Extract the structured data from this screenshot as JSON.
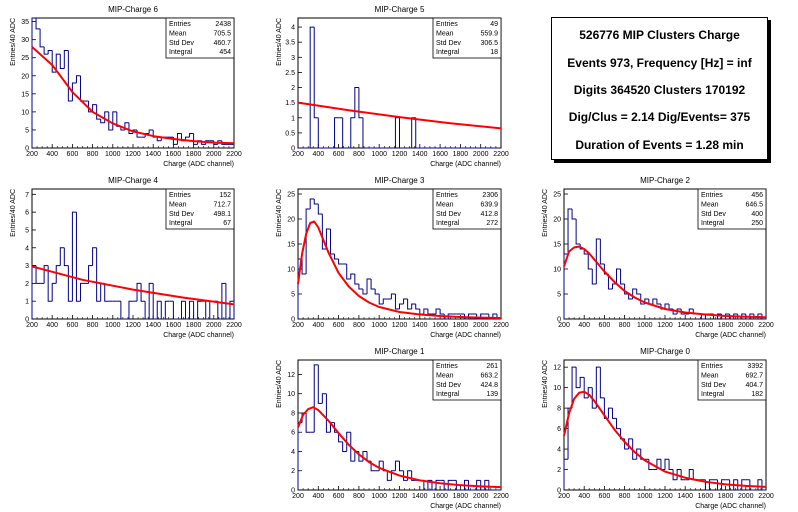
{
  "chart_data": [
    {
      "type": "histogram",
      "title": "MIP-Charge 6",
      "xlabel": "Charge (ADC channel)",
      "ylabel": "Entries/40 ADC",
      "xlim": [
        200,
        2200
      ],
      "ylim": [
        0,
        36
      ],
      "yticks": [
        0,
        5,
        10,
        15,
        20,
        25,
        30,
        35
      ],
      "bin_width": 40,
      "values": [
        36,
        33,
        28,
        26,
        27,
        21,
        26,
        22,
        27,
        13,
        18,
        20,
        13,
        13,
        10,
        12,
        8,
        7,
        10,
        5,
        10,
        6,
        5,
        7,
        4,
        5,
        3,
        3,
        4,
        5,
        3,
        2,
        3,
        3,
        3,
        1,
        4,
        2,
        3,
        4,
        1,
        2,
        1,
        2,
        2,
        1,
        2,
        1,
        1,
        1
      ],
      "fit": {
        "type": "exponential",
        "name": "expo",
        "points": [
          [
            200,
            28
          ],
          [
            400,
            23
          ],
          [
            600,
            15.5
          ],
          [
            800,
            10
          ],
          [
            1000,
            6.8
          ],
          [
            1200,
            4.6
          ],
          [
            1400,
            3.3
          ],
          [
            1600,
            2.5
          ],
          [
            1800,
            1.9
          ],
          [
            2000,
            1.5
          ],
          [
            2200,
            1.3
          ]
        ]
      },
      "stats": [
        [
          "Entries",
          "2438"
        ],
        [
          "Mean",
          "705.5"
        ],
        [
          "Std Dev",
          "460.7"
        ],
        [
          "Integral",
          "454"
        ]
      ]
    },
    {
      "type": "histogram",
      "title": "MIP-Charge 5",
      "xlabel": "Charge (ADC channel)",
      "ylabel": "Entries/40 ADC",
      "xlim": [
        200,
        2200
      ],
      "ylim": [
        0,
        4.3
      ],
      "yticks": [
        0,
        0.5,
        1,
        1.5,
        2,
        2.5,
        3,
        3.5,
        4
      ],
      "bin_width": 40,
      "values": [
        0,
        0,
        0,
        4,
        1,
        0,
        0,
        0,
        0,
        1,
        1,
        0,
        0,
        1,
        2,
        1,
        0,
        0,
        0,
        0,
        0,
        0,
        0,
        0,
        1,
        0,
        0,
        0,
        1,
        0,
        0,
        0,
        0,
        0,
        0,
        0,
        0,
        0,
        0,
        0,
        0,
        0,
        0,
        0,
        0,
        0,
        0,
        0,
        0,
        0
      ],
      "fit": {
        "type": "exponential",
        "name": "expo",
        "points": [
          [
            200,
            1.5
          ],
          [
            700,
            1.25
          ],
          [
            1200,
            1.02
          ],
          [
            1700,
            0.82
          ],
          [
            2200,
            0.65
          ]
        ]
      },
      "stats": [
        [
          "Entries",
          "49"
        ],
        [
          "Mean",
          "559.9"
        ],
        [
          "Std Dev",
          "306.5"
        ],
        [
          "Integral",
          "18"
        ]
      ]
    },
    {
      "type": "histogram",
      "title": "MIP-Charge 4",
      "xlabel": "Charge (ADC channel)",
      "ylabel": "Entries/40 ADC",
      "xlim": [
        200,
        2200
      ],
      "ylim": [
        0,
        7.3
      ],
      "yticks": [
        0,
        1,
        2,
        3,
        4,
        5,
        6,
        7
      ],
      "bin_width": 40,
      "values": [
        3,
        2,
        2,
        3,
        1,
        2,
        3,
        4,
        3,
        1,
        6,
        1,
        2,
        2,
        3,
        4,
        1,
        2,
        1,
        1,
        1,
        1,
        0,
        0,
        1,
        1,
        2,
        1,
        0,
        2,
        0,
        1,
        0,
        1,
        1,
        0,
        0,
        1,
        0,
        1,
        0,
        1,
        1,
        0,
        1,
        1,
        0,
        2,
        0,
        1
      ],
      "fit": {
        "type": "exponential",
        "name": "expo",
        "points": [
          [
            200,
            2.95
          ],
          [
            700,
            2.2
          ],
          [
            1200,
            1.65
          ],
          [
            1700,
            1.2
          ],
          [
            2200,
            0.82
          ]
        ]
      },
      "stats": [
        [
          "Entries",
          "152"
        ],
        [
          "Mean",
          "712.7"
        ],
        [
          "Std Dev",
          "498.1"
        ],
        [
          "Integral",
          "67"
        ]
      ]
    },
    {
      "type": "histogram",
      "title": "MIP-Charge 3",
      "xlabel": "Charge (ADC channel)",
      "ylabel": "Entries/40 ADC",
      "xlim": [
        200,
        2200
      ],
      "ylim": [
        0,
        26
      ],
      "yticks": [
        0,
        5,
        10,
        15,
        20,
        25
      ],
      "bin_width": 40,
      "values": [
        12,
        9,
        22,
        24,
        23,
        21,
        14,
        18,
        13,
        12,
        11,
        11,
        8,
        9,
        7,
        6,
        5,
        8,
        6,
        5,
        3,
        4,
        4,
        5,
        2,
        3,
        4,
        2,
        3,
        2,
        1,
        2,
        1,
        1,
        2,
        1,
        0,
        1,
        1,
        1,
        1,
        0,
        1,
        1,
        0,
        1,
        1,
        0,
        1,
        0
      ],
      "fit": {
        "type": "landau",
        "name": "landau",
        "points": [
          [
            200,
            7
          ],
          [
            240,
            13
          ],
          [
            280,
            17
          ],
          [
            320,
            19.2
          ],
          [
            360,
            19.5
          ],
          [
            400,
            18.3
          ],
          [
            450,
            15.8
          ],
          [
            500,
            13.3
          ],
          [
            600,
            9.2
          ],
          [
            700,
            6.5
          ],
          [
            800,
            4.6
          ],
          [
            900,
            3.3
          ],
          [
            1000,
            2.4
          ],
          [
            1200,
            1.4
          ],
          [
            1400,
            0.9
          ],
          [
            1600,
            0.6
          ],
          [
            1800,
            0.4
          ],
          [
            2000,
            0.28
          ],
          [
            2200,
            0.2
          ]
        ]
      },
      "stats": [
        [
          "Entries",
          "2306"
        ],
        [
          "Mean",
          "639.9"
        ],
        [
          "Std Dev",
          "412.8"
        ],
        [
          "Integral",
          "272"
        ]
      ]
    },
    {
      "type": "histogram",
      "title": "MIP-Charge 2",
      "xlabel": "Charge (ADC channel)",
      "ylabel": "Entries/40 ADC",
      "xlim": [
        200,
        2200
      ],
      "ylim": [
        0,
        26
      ],
      "yticks": [
        0,
        5,
        10,
        15,
        20,
        25
      ],
      "bin_width": 40,
      "values": [
        13,
        22,
        20,
        15,
        14,
        13,
        10,
        7,
        16,
        11,
        9,
        6,
        7,
        10,
        7,
        5,
        4,
        6,
        5,
        3,
        4,
        3,
        4,
        3,
        2,
        3,
        2,
        1,
        2,
        1,
        1,
        2,
        1,
        1,
        0,
        1,
        1,
        0,
        1,
        0,
        1,
        0,
        1,
        0,
        1,
        0,
        1,
        0,
        1,
        0
      ],
      "fit": {
        "type": "landau",
        "name": "landau",
        "points": [
          [
            200,
            10.5
          ],
          [
            250,
            13.5
          ],
          [
            300,
            14.3
          ],
          [
            350,
            14.5
          ],
          [
            400,
            14
          ],
          [
            450,
            13.1
          ],
          [
            500,
            11.9
          ],
          [
            600,
            9.5
          ],
          [
            700,
            7.4
          ],
          [
            800,
            5.6
          ],
          [
            900,
            4.3
          ],
          [
            1000,
            3.3
          ],
          [
            1200,
            2
          ],
          [
            1400,
            1.3
          ],
          [
            1600,
            0.9
          ],
          [
            1800,
            0.6
          ],
          [
            2000,
            0.45
          ],
          [
            2200,
            0.35
          ]
        ]
      },
      "stats": [
        [
          "Entries",
          "456"
        ],
        [
          "Mean",
          "646.5"
        ],
        [
          "Std Dev",
          "400"
        ],
        [
          "Integral",
          "250"
        ]
      ]
    },
    {
      "type": "histogram",
      "title": "MIP-Charge 1",
      "xlabel": "Charge (ADC channel)",
      "ylabel": "Entries/40 ADC",
      "xlim": [
        200,
        2200
      ],
      "ylim": [
        0,
        13.5
      ],
      "yticks": [
        0,
        2,
        4,
        6,
        8,
        10,
        12
      ],
      "bin_width": 40,
      "values": [
        7,
        8,
        6,
        6,
        13,
        9,
        10,
        6,
        7,
        6,
        5,
        4,
        6,
        3,
        4,
        3,
        4,
        3,
        2,
        2,
        3,
        2,
        1,
        2,
        3,
        2,
        1,
        2,
        1,
        1,
        1,
        0,
        1,
        0,
        1,
        1,
        0,
        1,
        1,
        0,
        0,
        1,
        0,
        0,
        1,
        0,
        1,
        0,
        0,
        0
      ],
      "fit": {
        "type": "landau",
        "name": "landau",
        "points": [
          [
            200,
            6.5
          ],
          [
            250,
            7.8
          ],
          [
            300,
            8.4
          ],
          [
            350,
            8.6
          ],
          [
            400,
            8.3
          ],
          [
            500,
            7.2
          ],
          [
            600,
            5.9
          ],
          [
            700,
            4.7
          ],
          [
            800,
            3.7
          ],
          [
            900,
            2.9
          ],
          [
            1000,
            2.3
          ],
          [
            1200,
            1.5
          ],
          [
            1400,
            1
          ],
          [
            1600,
            0.7
          ],
          [
            1800,
            0.5
          ],
          [
            2000,
            0.38
          ],
          [
            2200,
            0.3
          ]
        ]
      },
      "stats": [
        [
          "Entries",
          "261"
        ],
        [
          "Mean",
          "663.2"
        ],
        [
          "Std Dev",
          "424.8"
        ],
        [
          "Integral",
          "139"
        ]
      ]
    },
    {
      "type": "histogram",
      "title": "MIP-Charge 0",
      "xlabel": "Charge (ADC channel)",
      "ylabel": "Entries/40 ADC",
      "xlim": [
        200,
        2200
      ],
      "ylim": [
        0,
        12.7
      ],
      "yticks": [
        0,
        2,
        4,
        6,
        8,
        10,
        12
      ],
      "bin_width": 40,
      "values": [
        3,
        8,
        12,
        10,
        11,
        9,
        10,
        8,
        12,
        9,
        7,
        8,
        7,
        6,
        5,
        4,
        5,
        3,
        4,
        3,
        3,
        2,
        2,
        3,
        2,
        3,
        2,
        1,
        2,
        1,
        1,
        2,
        1,
        1,
        1,
        0,
        1,
        1,
        0,
        1,
        1,
        0,
        1,
        0,
        1,
        1,
        0,
        0,
        1,
        0
      ],
      "fit": {
        "type": "landau",
        "name": "landau",
        "points": [
          [
            200,
            5.3
          ],
          [
            250,
            7.5
          ],
          [
            300,
            8.9
          ],
          [
            350,
            9.5
          ],
          [
            400,
            9.6
          ],
          [
            450,
            9.3
          ],
          [
            500,
            8.7
          ],
          [
            600,
            7.3
          ],
          [
            700,
            5.9
          ],
          [
            800,
            4.7
          ],
          [
            900,
            3.7
          ],
          [
            1000,
            2.9
          ],
          [
            1200,
            1.8
          ],
          [
            1400,
            1.2
          ],
          [
            1600,
            0.8
          ],
          [
            1800,
            0.55
          ],
          [
            2000,
            0.4
          ],
          [
            2200,
            0.3
          ]
        ]
      },
      "stats": [
        [
          "Entries",
          "3392"
        ],
        [
          "Mean",
          "692.7"
        ],
        [
          "Std Dev",
          "404.7"
        ],
        [
          "Integral",
          "182"
        ]
      ]
    }
  ],
  "summary": {
    "line1": "526776 MIP Clusters Charge",
    "line2": "Events 973, Frequency [Hz] = inf",
    "line3": "Digits 364520 Clusters 170192",
    "line4": "Dig/Clus = 2.14 Dig/Events= 375",
    "line5": "Duration of Events = 1.28 min"
  },
  "colors": {
    "histogram": "#00008b",
    "fit": "#ff0000",
    "axis": "#000000"
  },
  "x_ticks": [
    200,
    400,
    600,
    800,
    1000,
    1200,
    1400,
    1600,
    1800,
    2000,
    2200
  ]
}
